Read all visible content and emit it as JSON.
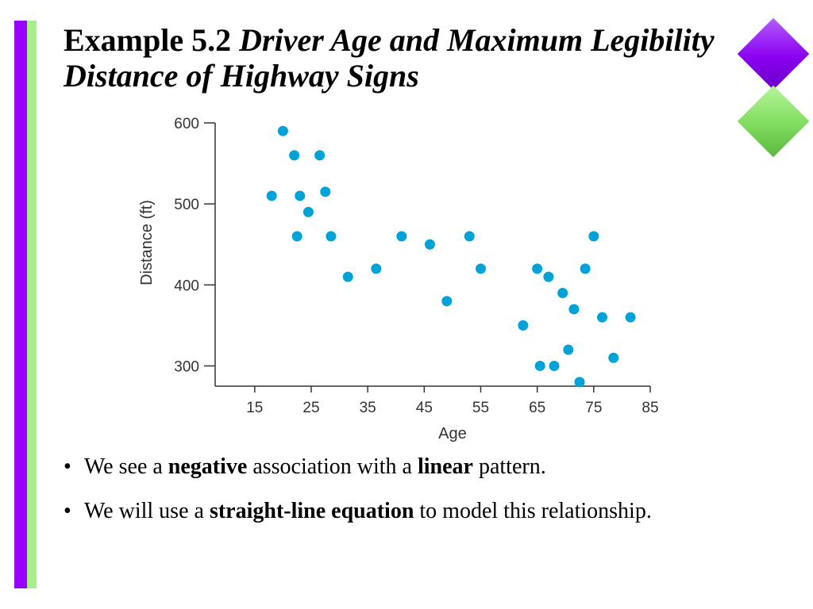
{
  "slide": {
    "title_lead": "Example 5.2",
    "title_rest": "Driver Age and Maximum Legibility Distance of Highway Signs",
    "colors": {
      "purple": "#9a00ff",
      "green": "#a6f08c",
      "point": "#00a3d7"
    }
  },
  "bullets": [
    {
      "marker": "•",
      "parts": [
        {
          "text": "We see a ",
          "bold": false
        },
        {
          "text": "negative",
          "bold": true
        },
        {
          "text": " association with a ",
          "bold": false
        },
        {
          "text": "linear",
          "bold": true
        },
        {
          "text": " pattern.",
          "bold": false
        }
      ]
    },
    {
      "marker": "•",
      "parts": [
        {
          "text": "We will use a ",
          "bold": false
        },
        {
          "text": "straight-line equation",
          "bold": true
        },
        {
          "text": " to model this relationship.",
          "bold": false
        }
      ]
    }
  ],
  "chart_data": {
    "type": "scatter",
    "title": "",
    "xlabel": "Age",
    "ylabel": "Distance (ft)",
    "xlim": [
      8,
      85
    ],
    "ylim": [
      275,
      600
    ],
    "xticks": [
      15,
      25,
      35,
      45,
      55,
      65,
      75,
      85
    ],
    "yticks": [
      300,
      400,
      500,
      600
    ],
    "grid": false,
    "x": [
      18,
      20,
      22,
      22.5,
      23,
      24.5,
      26.5,
      27.5,
      28.5,
      31.5,
      36.5,
      41,
      46,
      49,
      53,
      55,
      62.5,
      65,
      65.5,
      67,
      68,
      69.5,
      70.5,
      71.5,
      72.5,
      73.5,
      75,
      76.5,
      78.5,
      81.5
    ],
    "y": [
      510,
      590,
      560,
      460,
      510,
      490,
      560,
      515,
      460,
      410,
      420,
      460,
      450,
      380,
      460,
      420,
      350,
      420,
      300,
      410,
      300,
      390,
      320,
      370,
      280,
      420,
      460,
      360,
      310,
      360
    ]
  }
}
